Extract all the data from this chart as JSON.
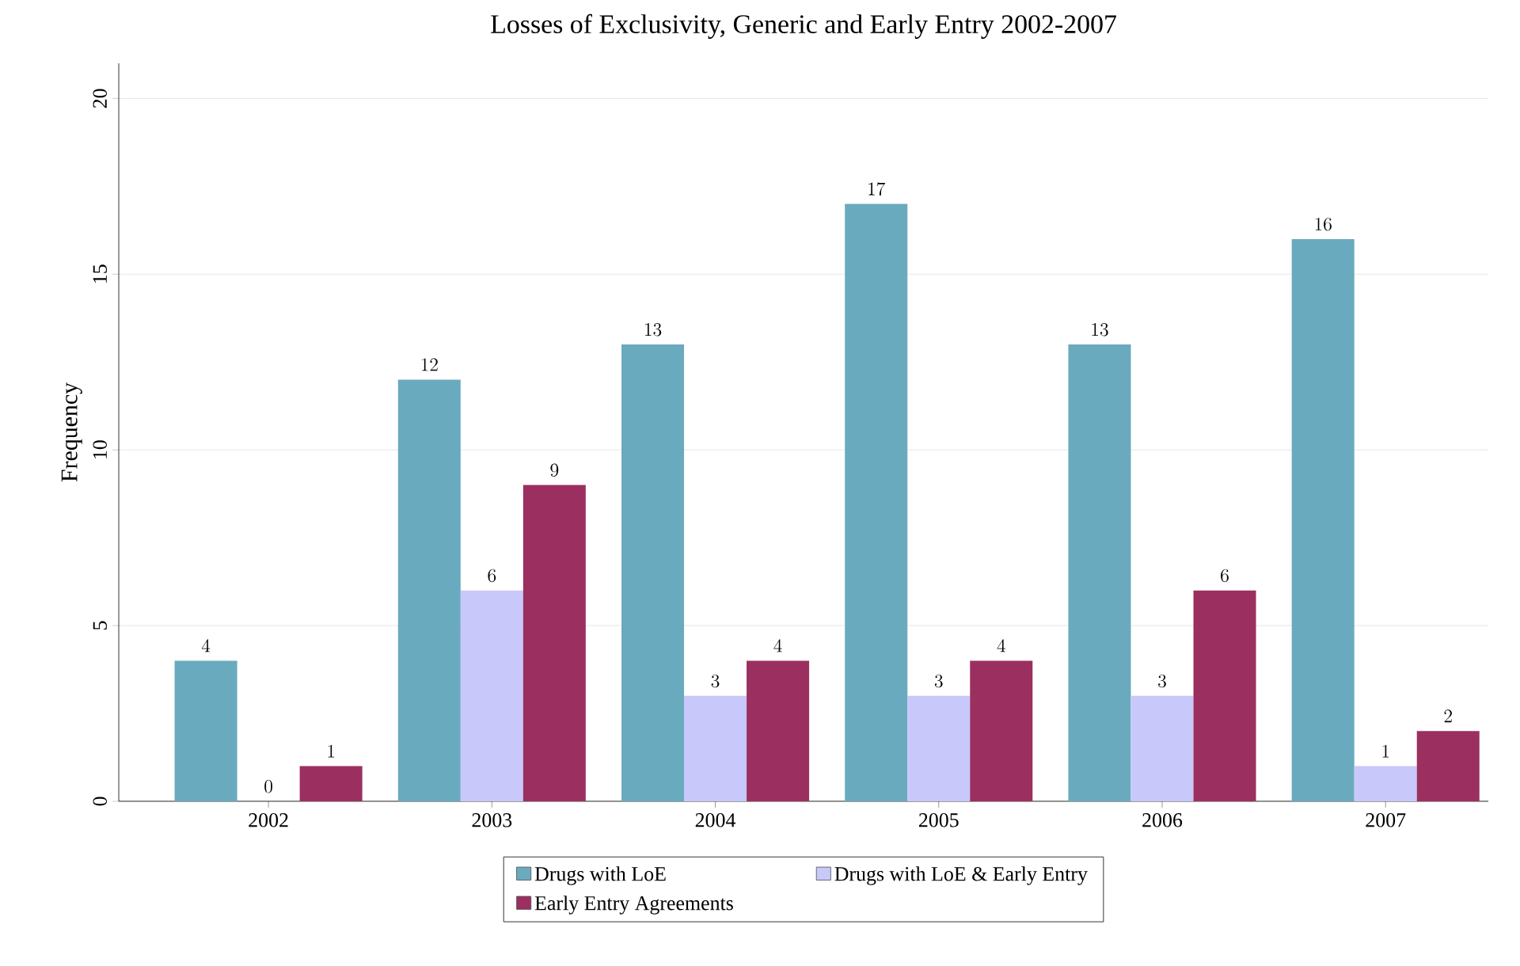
{
  "chart_data": {
    "type": "bar",
    "title": "Losses of Exclusivity, Generic and Early Entry 2002-2007",
    "ylabel": "Frequency",
    "categories": [
      "2002",
      "2003",
      "2004",
      "2005",
      "2006",
      "2007"
    ],
    "series": [
      {
        "name": "Drugs with LoE",
        "color": "#6aaabe",
        "values": [
          4,
          12,
          13,
          17,
          13,
          16
        ]
      },
      {
        "name": "Drugs with LoE & Early Entry",
        "color": "#c8c8fa",
        "values": [
          0,
          6,
          3,
          3,
          3,
          1
        ]
      },
      {
        "name": "Early Entry Agreements",
        "color": "#9b3060",
        "values": [
          1,
          9,
          4,
          4,
          6,
          2
        ]
      }
    ],
    "ylim": [
      0,
      21
    ],
    "yticks": [
      0,
      5,
      10,
      15,
      20
    ],
    "grid": "y",
    "legend": "bottom",
    "data_labels": true
  }
}
